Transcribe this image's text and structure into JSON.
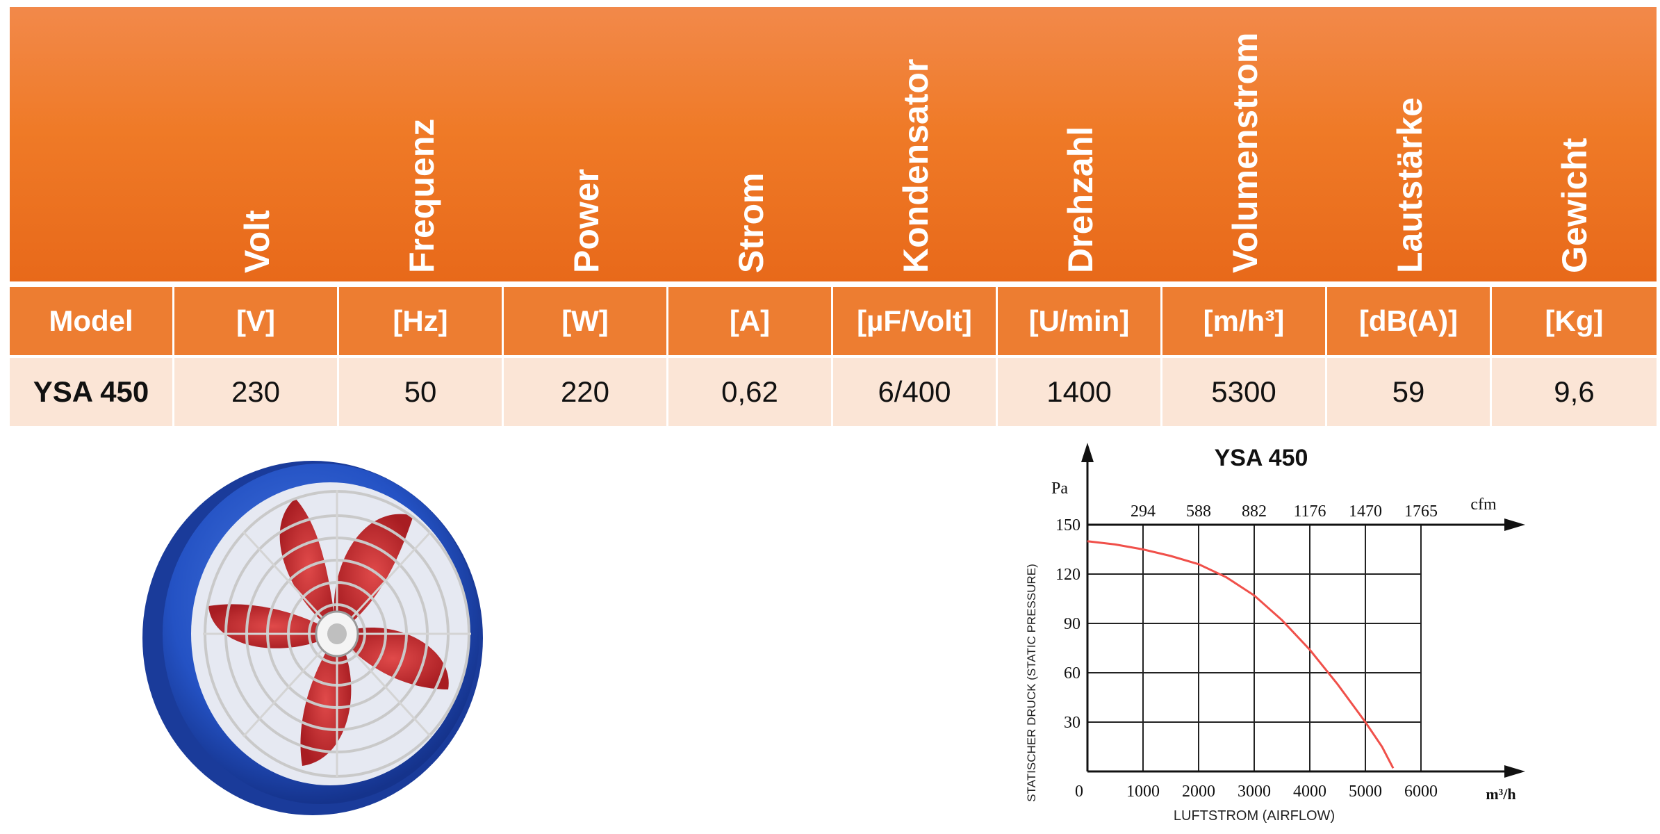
{
  "table": {
    "headers": [
      "Volt",
      "Frequenz",
      "Power",
      "Strom",
      "Kondensator",
      "Drehzahl",
      "Volumenstrom",
      "Lautstärke",
      "Gewicht"
    ],
    "units": [
      "Model",
      "[V]",
      "[Hz]",
      "[W]",
      "[A]",
      "[µF/Volt]",
      "[U/min]",
      "[m/h³]",
      "[dB(A)]",
      "[Kg]"
    ],
    "values": [
      "YSA 450",
      "230",
      "50",
      "220",
      "0,62",
      "6/400",
      "1400",
      "5300",
      "59",
      "9,6"
    ],
    "colors": {
      "header": "#ef7a27",
      "units_row": "#ed7d31",
      "values_row": "#fbe5d6"
    }
  },
  "product_image": {
    "icon": "axial-fan-icon",
    "colors": {
      "housing": "#2452c4",
      "blades": "#c8282c",
      "grille": "#c9c9c9"
    }
  },
  "chart_data": {
    "type": "line",
    "title": "YSA 450",
    "xlabel": "LUFTSTROM (AIRFLOW)",
    "ylabel": "STATISCHER DRUCK (STATIC PRESSURE)",
    "x_unit": "m³/h",
    "y_unit": "Pa",
    "x_ticks": [
      "0",
      "1000",
      "2000",
      "3000",
      "4000",
      "5000",
      "6000"
    ],
    "y_ticks": [
      "30",
      "60",
      "90",
      "120",
      "150"
    ],
    "top_unit": "cfm",
    "top_ticks": [
      "294",
      "588",
      "882",
      "1176",
      "1470",
      "1765"
    ],
    "xlim": [
      0,
      6000
    ],
    "ylim": [
      0,
      150
    ],
    "grid": true,
    "series": [
      {
        "color": "#f0504a",
        "x": [
          0,
          500,
          1000,
          1500,
          2000,
          2500,
          3000,
          3500,
          4000,
          4500,
          5000,
          5300,
          5500
        ],
        "y": [
          140,
          138,
          135,
          131,
          126,
          118,
          107,
          92,
          74,
          53,
          30,
          15,
          2
        ]
      }
    ]
  }
}
